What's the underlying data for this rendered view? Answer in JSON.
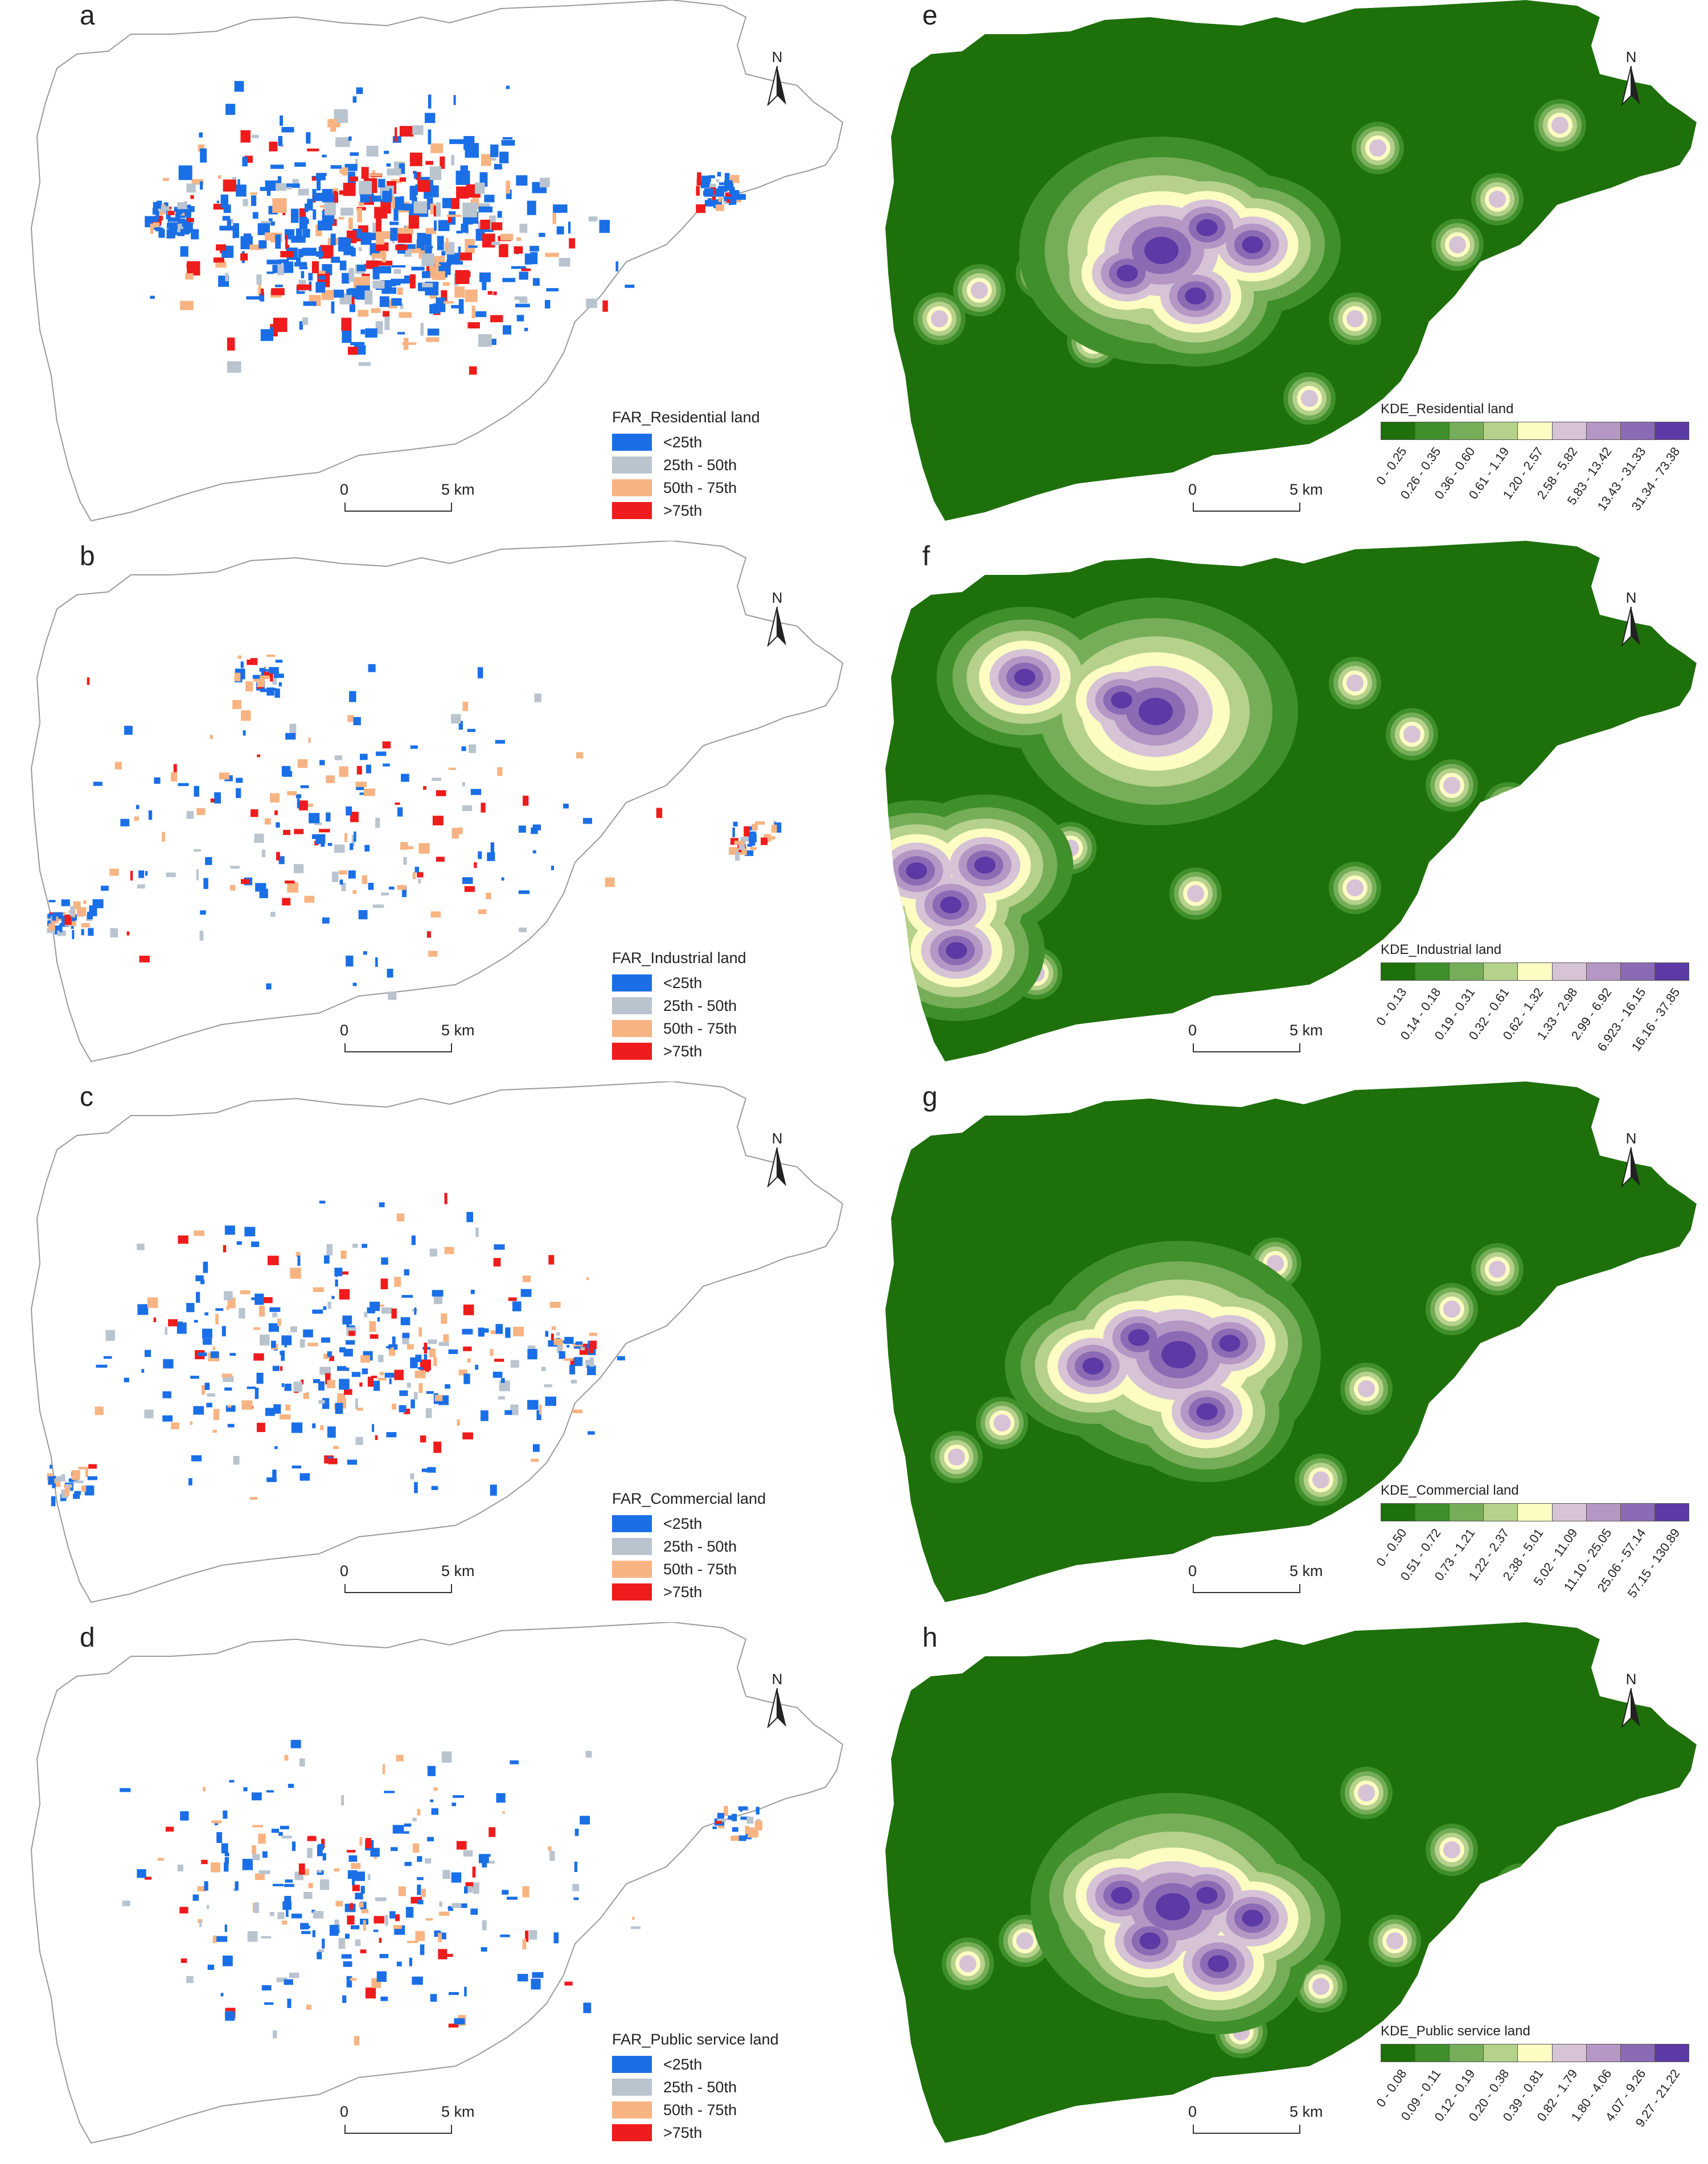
{
  "colors": {
    "far": [
      "#1a6fe6",
      "#b9c4cf",
      "#f7b482",
      "#ee1c1c"
    ],
    "kde_res": [
      "#1e700b",
      "#3f8f2a",
      "#75ad58",
      "#b5d18b",
      "#fcfcc3",
      "#d6c3d6",
      "#b497c4",
      "#8c6bb5",
      "#5b3aa5"
    ],
    "outline": "#9a9a9a",
    "green": "#1e700b"
  },
  "north_label": "N",
  "scale": {
    "zero": "0",
    "five": "5 km"
  },
  "far_panels": [
    {
      "id": "a",
      "title": "FAR_Residential land"
    },
    {
      "id": "b",
      "title": "FAR_Industrial land"
    },
    {
      "id": "c",
      "title": "FAR_Commercial land"
    },
    {
      "id": "d",
      "title": "FAR_Public service land"
    }
  ],
  "far_classes": [
    "<25th",
    "25th - 50th",
    "50th - 75th",
    ">75th"
  ],
  "kde_panels": [
    {
      "id": "e",
      "title": "KDE_Residential land",
      "classes": [
        "0 - 0.25",
        "0.26 - 0.35",
        "0.36 - 0.60",
        "0.61 - 1.19",
        "1.20 - 2.57",
        "2.58 - 5.82",
        "5.83 - 13.42",
        "13.43 - 31.33",
        "31.34 - 73.38"
      ]
    },
    {
      "id": "f",
      "title": "KDE_Industrial land",
      "classes": [
        "0 - 0.13",
        "0.14 - 0.18",
        "0.19 - 0.31",
        "0.32 - 0.61",
        "0.62 - 1.32",
        "1.33 - 2.98",
        "2.99 - 6.92",
        "6.923 - 16.15",
        "16.16 - 37.85"
      ]
    },
    {
      "id": "g",
      "title": "KDE_Commercial land",
      "classes": [
        "0 - 0.50",
        "0.51 - 0.72",
        "0.73 - 1.21",
        "1.22 - 2.37",
        "2.38 - 5.01",
        "5.02 - 11.09",
        "11.10 - 25.05",
        "25.06 - 57.14",
        "57.15 - 130.89"
      ]
    },
    {
      "id": "h",
      "title": "KDE_Public service land",
      "classes": [
        "0 - 0.08",
        "0.09 - 0.11",
        "0.12 - 0.19",
        "0.20 - 0.38",
        "0.39 - 0.81",
        "0.82 - 1.79",
        "1.80 - 4.06",
        "4.07 - 9.26",
        "9.27 - 21.22"
      ]
    }
  ]
}
